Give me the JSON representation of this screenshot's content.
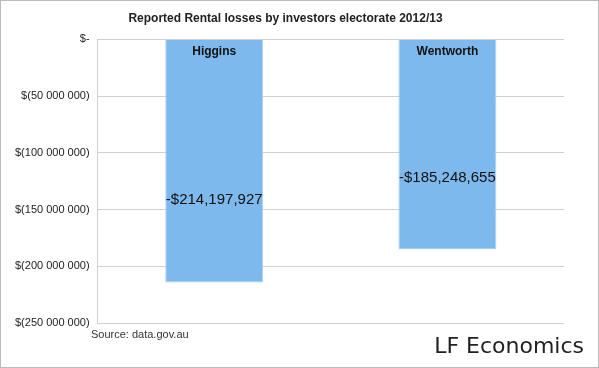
{
  "chart_data": {
    "type": "bar",
    "title": "Reported Rental losses by investors electorate 2012/13",
    "categories": [
      "Higgins",
      "Wentworth"
    ],
    "values": [
      -214197927,
      -185248655
    ],
    "value_labels": [
      "-$214,197,927",
      "-$185,248,655"
    ],
    "data_labels": true,
    "color": "#7db9ec",
    "ylim": [
      -250000000,
      0
    ],
    "yticks": [
      {
        "value": -250000000,
        "label": "$(250 000 000)"
      },
      {
        "value": -200000000,
        "label": "$(200 000 000)"
      },
      {
        "value": -150000000,
        "label": "$(150 000 000)"
      },
      {
        "value": -100000000,
        "label": "$(100 000 000)"
      },
      {
        "value": -50000000,
        "label": "$(50 000 000)"
      },
      {
        "value": 0,
        "label": "$-"
      }
    ],
    "grid": true,
    "annotations": [
      "Source: data.gov.au",
      "LF Economics"
    ]
  }
}
